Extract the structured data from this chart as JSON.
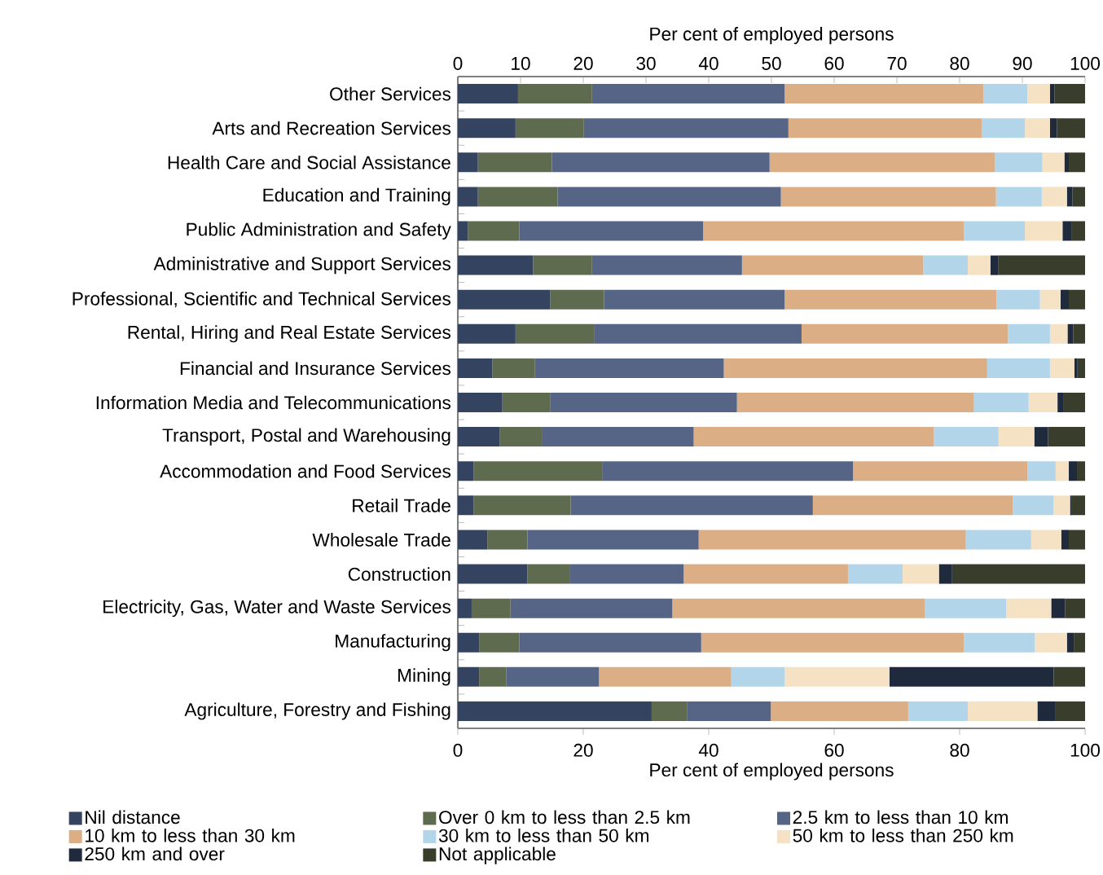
{
  "chart_data": {
    "type": "bar",
    "orientation": "horizontal",
    "stacked": true,
    "xlabel": "Per cent of employed persons",
    "x2label": "Per cent of employed persons",
    "xlim": [
      0,
      100
    ],
    "xticks": [
      0,
      20,
      40,
      60,
      80,
      100
    ],
    "x2lim": [
      0,
      100
    ],
    "x2ticks": [
      0,
      10,
      20,
      30,
      40,
      50,
      60,
      70,
      80,
      90,
      100
    ],
    "legend": "bottom",
    "categories": [
      "Other Services",
      "Arts and Recreation Services",
      "Health Care and Social Assistance",
      "Education and Training",
      "Public Administration and Safety",
      "Administrative and Support Services",
      "Professional, Scientific and Technical Services",
      "Rental, Hiring and Real Estate Services",
      "Financial and Insurance Services",
      "Information Media and Telecommunications",
      "Transport, Postal and Warehousing",
      "Accommodation and Food Services",
      "Retail Trade",
      "Wholesale Trade",
      "Construction",
      "Electricity, Gas, Water and Waste Services",
      "Manufacturing",
      "Mining",
      "Agriculture, Forestry and Fishing"
    ],
    "series": [
      {
        "name": "Nil distance",
        "color": "#34435f",
        "values": [
          9.6,
          9.2,
          3.2,
          3.2,
          1.6,
          12.0,
          14.7,
          9.2,
          5.5,
          7.1,
          6.7,
          2.5,
          2.5,
          4.7,
          11.1,
          2.2,
          3.4,
          3.4,
          30.9
        ]
      },
      {
        "name": "Over 0 km to less than 2.5 km",
        "color": "#5f6b4e",
        "values": [
          11.8,
          10.9,
          11.8,
          12.7,
          8.2,
          9.4,
          8.6,
          12.5,
          6.8,
          7.6,
          6.8,
          20.5,
          15.5,
          6.4,
          6.7,
          6.2,
          6.4,
          4.3,
          5.7
        ]
      },
      {
        "name": "2.5 km to less than 10 km",
        "color": "#566585",
        "values": [
          30.7,
          32.6,
          34.7,
          35.6,
          29.3,
          23.9,
          28.8,
          33.1,
          30.1,
          29.8,
          24.1,
          40.0,
          38.6,
          27.3,
          18.2,
          25.8,
          29.0,
          14.8,
          13.3
        ]
      },
      {
        "name": "10 km to less than 30 km",
        "color": "#dcae86",
        "values": [
          31.7,
          30.8,
          35.9,
          34.3,
          41.6,
          28.9,
          33.8,
          32.9,
          42.0,
          37.8,
          38.3,
          27.8,
          31.9,
          42.6,
          26.2,
          40.3,
          41.9,
          21.1,
          21.9
        ]
      },
      {
        "name": "30 km to less than 50 km",
        "color": "#b3d5ea",
        "values": [
          7.0,
          6.9,
          7.6,
          7.3,
          9.7,
          7.1,
          6.9,
          6.7,
          10.0,
          8.7,
          10.3,
          4.5,
          6.5,
          10.4,
          8.7,
          12.9,
          11.3,
          8.5,
          9.5
        ]
      },
      {
        "name": "50 km to less than 250 km",
        "color": "#f5e1c4",
        "values": [
          3.6,
          4.0,
          3.5,
          4.0,
          6.0,
          3.6,
          3.3,
          2.8,
          3.9,
          4.6,
          5.7,
          2.1,
          2.6,
          4.8,
          5.8,
          7.2,
          5.1,
          16.7,
          11.1
        ]
      },
      {
        "name": "250 km and over",
        "color": "#1f2a3d",
        "values": [
          0.7,
          1.1,
          0.7,
          0.9,
          1.5,
          1.3,
          1.3,
          0.9,
          0.5,
          0.9,
          2.2,
          1.3,
          0.3,
          1.2,
          2.1,
          2.2,
          1.1,
          26.2,
          2.8
        ]
      },
      {
        "name": "Not applicable",
        "color": "#383d2c",
        "values": [
          4.9,
          4.5,
          2.6,
          2.0,
          2.1,
          13.8,
          2.6,
          1.9,
          1.2,
          3.5,
          5.9,
          1.3,
          2.1,
          2.6,
          21.2,
          3.2,
          1.8,
          5.0,
          4.8
        ]
      }
    ]
  }
}
